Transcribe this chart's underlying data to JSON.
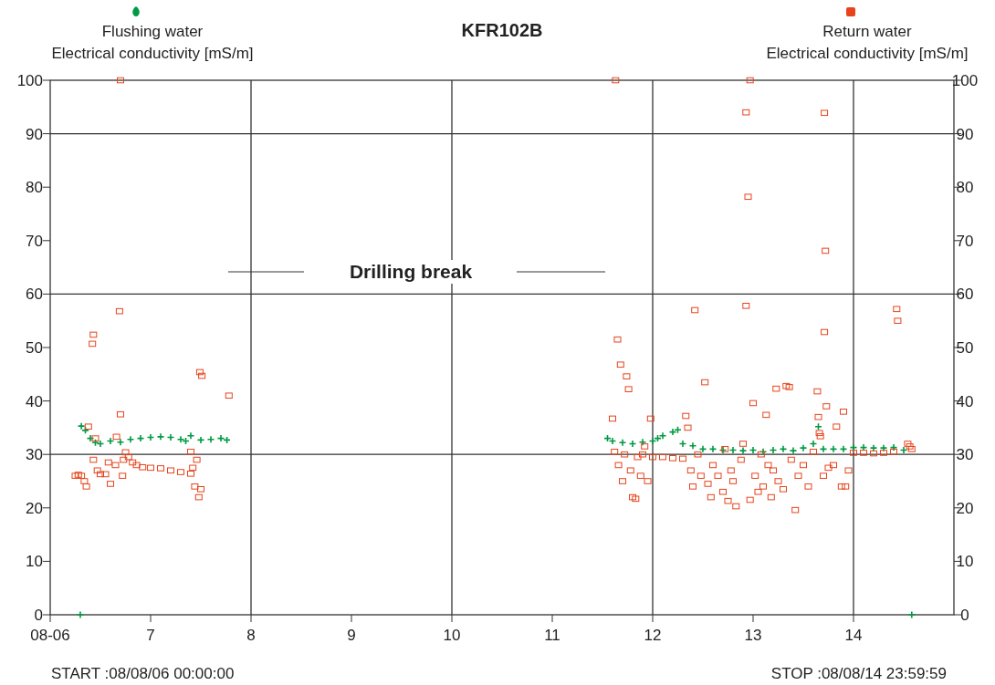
{
  "chart_data": {
    "type": "scatter",
    "title": "KFR102B",
    "ylabel": "Electrical conductivity [mS/m]",
    "y2label": "Electrical conductivity [mS/m]",
    "legend": "top",
    "xlim": [
      6,
      15
    ],
    "xticks": [
      {
        "value": 6,
        "label": "08-06"
      },
      7,
      8,
      9,
      10,
      11,
      12,
      13,
      14
    ],
    "ylim": [
      0,
      100
    ],
    "yticks": [
      0,
      10,
      20,
      30,
      40,
      50,
      60,
      70,
      80,
      90,
      100
    ],
    "y2lim": [
      0,
      100
    ],
    "y2ticks": [
      0,
      10,
      20,
      30,
      40,
      50,
      60,
      70,
      80,
      90,
      100
    ],
    "grid": false,
    "ref_lines": [
      {
        "axis": "x",
        "value": 8,
        "color": "#333333"
      },
      {
        "axis": "x",
        "value": 10,
        "color": "#333333"
      },
      {
        "axis": "x",
        "value": 12,
        "color": "#333333"
      },
      {
        "axis": "x",
        "value": 14,
        "color": "#333333"
      },
      {
        "axis": "y",
        "value": 30,
        "color": "#333333"
      },
      {
        "axis": "y",
        "value": 60,
        "color": "#333333"
      },
      {
        "axis": "y",
        "value": 90,
        "color": "#333333"
      }
    ],
    "annotations": [
      "Drilling break",
      "START :08/08/06 00:00:00",
      "STOP :08/08/14 23:59:59"
    ],
    "series": [
      {
        "name": "Flushing water",
        "color": "#009a44",
        "marker": "cross",
        "x": [
          6.3,
          6.31,
          6.35,
          6.4,
          6.45,
          6.5,
          6.6,
          6.7,
          6.8,
          6.9,
          7.0,
          7.1,
          7.2,
          7.3,
          7.35,
          7.4,
          7.5,
          7.6,
          7.7,
          7.76,
          11.55,
          11.6,
          11.7,
          11.8,
          11.9,
          12.0,
          12.05,
          12.1,
          12.2,
          12.25,
          12.3,
          12.4,
          12.5,
          12.6,
          12.7,
          12.8,
          12.9,
          13.0,
          13.1,
          13.2,
          13.3,
          13.4,
          13.5,
          13.6,
          13.65,
          13.7,
          13.8,
          13.9,
          14.0,
          14.1,
          14.2,
          14.3,
          14.4,
          14.5,
          14.58
        ],
        "values": [
          0,
          35.3,
          34.5,
          33,
          32.2,
          32,
          32.5,
          32.3,
          32.8,
          33,
          33.2,
          33.3,
          33.2,
          32.8,
          32.5,
          33.5,
          32.7,
          32.8,
          33,
          32.7,
          33,
          32.5,
          32.2,
          32,
          32.3,
          32.5,
          33,
          33.5,
          34.2,
          34.6,
          32,
          31.6,
          31,
          31,
          30.8,
          30.8,
          30.7,
          30.8,
          30.5,
          30.8,
          31,
          30.7,
          31.2,
          32,
          35.2,
          31,
          31,
          31,
          31.3,
          31.3,
          31.2,
          31.2,
          31.3,
          30.8,
          0
        ]
      },
      {
        "name": "Return water",
        "color": "#e8431b",
        "marker": "square",
        "axis": "y2",
        "x": [
          6.25,
          6.28,
          6.31,
          6.34,
          6.36,
          6.38,
          6.42,
          6.43,
          6.43,
          6.45,
          6.47,
          6.5,
          6.55,
          6.58,
          6.6,
          6.65,
          6.66,
          6.69,
          6.7,
          6.7,
          6.72,
          6.73,
          6.75,
          6.78,
          6.82,
          6.86,
          6.92,
          7.0,
          7.1,
          7.2,
          7.3,
          7.4,
          7.4,
          7.42,
          7.44,
          7.46,
          7.48,
          7.5,
          7.49,
          7.51,
          7.78,
          11.6,
          11.62,
          11.63,
          11.65,
          11.66,
          11.68,
          11.7,
          11.72,
          11.74,
          11.76,
          11.78,
          11.8,
          11.83,
          11.85,
          11.88,
          11.9,
          11.92,
          11.95,
          11.98,
          12.0,
          12.1,
          12.2,
          12.3,
          12.33,
          12.35,
          12.38,
          12.4,
          12.42,
          12.45,
          12.48,
          12.52,
          12.55,
          12.58,
          12.6,
          12.65,
          12.7,
          12.72,
          12.75,
          12.78,
          12.8,
          12.83,
          12.88,
          12.9,
          12.93,
          12.93,
          12.95,
          12.97,
          12.97,
          13.0,
          13.02,
          13.05,
          13.08,
          13.1,
          13.13,
          13.15,
          13.18,
          13.2,
          13.23,
          13.25,
          13.3,
          13.33,
          13.36,
          13.38,
          13.42,
          13.45,
          13.5,
          13.55,
          13.6,
          13.64,
          13.65,
          13.66,
          13.67,
          13.7,
          13.71,
          13.71,
          13.72,
          13.73,
          13.75,
          13.8,
          13.83,
          13.88,
          13.9,
          13.92,
          13.95,
          14.0,
          14.1,
          14.2,
          14.3,
          14.4,
          14.43,
          14.44,
          14.54,
          14.56,
          14.58
        ],
        "values": [
          26,
          26.2,
          26,
          25,
          24,
          35.2,
          50.7,
          52.4,
          29,
          33,
          27,
          26.3,
          26.3,
          28.5,
          24.5,
          28,
          33.3,
          56.8,
          100,
          37.5,
          26,
          29,
          30.4,
          29.5,
          28.5,
          28,
          27.6,
          27.5,
          27.4,
          27,
          26.7,
          26.4,
          30.5,
          27.5,
          24,
          29,
          22,
          23.5,
          45.4,
          44.7,
          41,
          36.7,
          30.5,
          100,
          51.5,
          28,
          46.8,
          25,
          30,
          44.6,
          42.2,
          27,
          22,
          21.7,
          29.5,
          26,
          30,
          31.5,
          25,
          36.7,
          29.5,
          29.5,
          29.3,
          29.2,
          37.2,
          35,
          27,
          24,
          57,
          30,
          26,
          43.5,
          24.5,
          22,
          28,
          26,
          23,
          31,
          21.3,
          27,
          25,
          20.3,
          29,
          32,
          94,
          57.8,
          78.2,
          100,
          21.5,
          39.6,
          26,
          23,
          30,
          24,
          37.4,
          28,
          22,
          27,
          42.3,
          25,
          23.5,
          42.8,
          42.6,
          29,
          19.6,
          26,
          28,
          24,
          30.5,
          41.8,
          37,
          34,
          33.4,
          26,
          52.9,
          93.9,
          68.1,
          39,
          27.5,
          28,
          35.2,
          24,
          38,
          24,
          27,
          30.3,
          30.3,
          30.2,
          30.3,
          30.5,
          57.2,
          55,
          32,
          31.5,
          31
        ]
      }
    ]
  }
}
